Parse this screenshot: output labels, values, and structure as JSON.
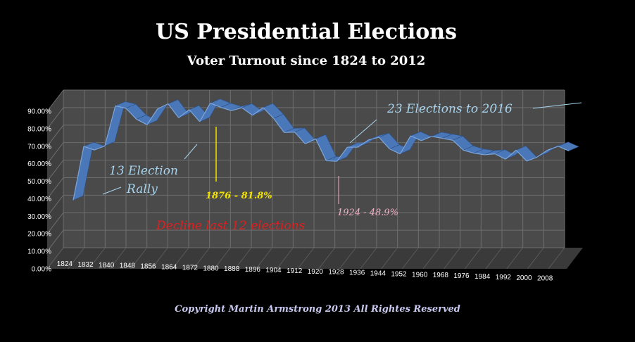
{
  "colors": {
    "background": "#000000",
    "line": "#4a77b8",
    "line_edge": "#2d4f86",
    "grid": "#6e6e6e",
    "wall": "#4a4a4a",
    "floor": "#3a3a3a",
    "annotation_blue": "#a8d4ee",
    "annotation_yellow": "#f2e200",
    "annotation_red": "#e41e1e",
    "annotation_pink": "#f1b0c8",
    "copyright": "#c8c8f0"
  },
  "chart_data": {
    "type": "line",
    "title": "US Presidential Elections",
    "subtitle": "Voter Turnout since 1824 to 2012",
    "ylim": [
      0,
      0.9
    ],
    "yticks": [
      "0.00%",
      "10.00%",
      "20.00%",
      "30.00%",
      "40.00%",
      "50.00%",
      "60.00%",
      "70.00%",
      "80.00%",
      "90.00%"
    ],
    "x": [
      1824,
      1828,
      1832,
      1836,
      1840,
      1844,
      1848,
      1852,
      1856,
      1860,
      1864,
      1868,
      1872,
      1876,
      1880,
      1884,
      1888,
      1892,
      1896,
      1900,
      1904,
      1908,
      1912,
      1916,
      1920,
      1924,
      1928,
      1932,
      1936,
      1940,
      1944,
      1948,
      1952,
      1956,
      1960,
      1964,
      1968,
      1972,
      1976,
      1980,
      1984,
      1988,
      1992,
      1996,
      2000,
      2004,
      2008,
      2012
    ],
    "xtick_labels": [
      "1824",
      "1832",
      "1840",
      "1848",
      "1856",
      "1864",
      "1872",
      "1880",
      "1888",
      "1896",
      "1904",
      "1912",
      "1920",
      "1928",
      "1936",
      "1944",
      "1952",
      "1960",
      "1968",
      "1976",
      "1984",
      "1992",
      "2000",
      "2008"
    ],
    "series": [
      {
        "values": [
          0.269,
          0.573,
          0.553,
          0.576,
          0.803,
          0.789,
          0.727,
          0.696,
          0.786,
          0.814,
          0.735,
          0.781,
          0.713,
          0.818,
          0.794,
          0.776,
          0.792,
          0.749,
          0.793,
          0.732,
          0.652,
          0.654,
          0.588,
          0.616,
          0.492,
          0.489,
          0.569,
          0.569,
          0.61,
          0.625,
          0.559,
          0.531,
          0.633,
          0.606,
          0.63,
          0.619,
          0.608,
          0.552,
          0.535,
          0.526,
          0.531,
          0.501,
          0.552,
          0.49,
          0.513,
          0.553,
          0.574,
          0.548
        ]
      }
    ],
    "grid": true,
    "annotations": [
      {
        "text": "13 Election",
        "color": "annotation_blue"
      },
      {
        "text": "Rally",
        "color": "annotation_blue"
      },
      {
        "text": "23 Elections to 2016",
        "color": "annotation_blue"
      },
      {
        "text": "1876 -  81.8%",
        "color": "annotation_yellow"
      },
      {
        "text": "1924 - 48.9%",
        "color": "annotation_pink"
      },
      {
        "text": "Decline last 12 elections",
        "color": "annotation_red"
      }
    ]
  },
  "copyright": "Copyright Martin Armstrong 2013 All Rightes Reserved"
}
